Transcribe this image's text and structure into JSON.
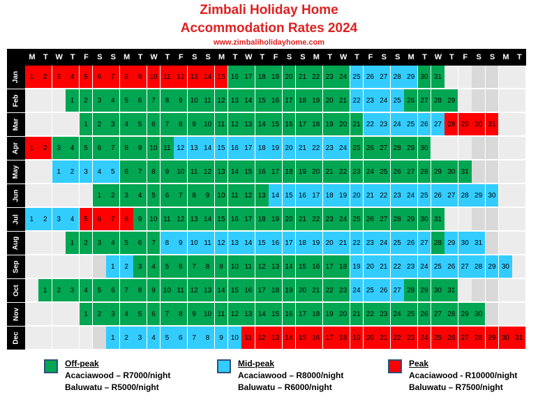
{
  "header": {
    "title_line1": "Zimbali Holiday Home",
    "title_line2": "Accommodation Rates 2024",
    "website": "www.zimbaliholidayhome.com"
  },
  "weekday_headers": [
    "M",
    "T",
    "W",
    "T",
    "F",
    "S",
    "S",
    "M",
    "T",
    "W",
    "T",
    "F",
    "S",
    "S",
    "M",
    "T",
    "W",
    "T",
    "F",
    "S",
    "S",
    "M",
    "T",
    "W",
    "T",
    "F",
    "S",
    "S",
    "M",
    "T",
    "W",
    "T",
    "F",
    "S",
    "S",
    "M",
    "T"
  ],
  "colors": {
    "off_peak": "#00a651",
    "mid_peak": "#33ccff",
    "peak": "#ff0000"
  },
  "months": [
    {
      "name": "Jan",
      "start": 0,
      "days": 31,
      "segments": [
        [
          "peak",
          1,
          15
        ],
        [
          "off",
          16,
          24
        ],
        [
          "mid",
          25,
          29
        ],
        [
          "off",
          30,
          31
        ]
      ]
    },
    {
      "name": "Feb",
      "start": 3,
      "days": 29,
      "segments": [
        [
          "off",
          1,
          21
        ],
        [
          "mid",
          22,
          25
        ],
        [
          "off",
          26,
          29
        ]
      ]
    },
    {
      "name": "Mar",
      "start": 4,
      "days": 31,
      "segments": [
        [
          "off",
          1,
          21
        ],
        [
          "mid",
          22,
          27
        ],
        [
          "peak",
          28,
          31
        ]
      ]
    },
    {
      "name": "Apr",
      "start": 0,
      "days": 30,
      "segments": [
        [
          "peak",
          1,
          2
        ],
        [
          "off",
          3,
          11
        ],
        [
          "mid",
          12,
          24
        ],
        [
          "off",
          25,
          30
        ]
      ]
    },
    {
      "name": "May",
      "start": 2,
      "days": 31,
      "segments": [
        [
          "mid",
          1,
          5
        ],
        [
          "off",
          6,
          31
        ]
      ]
    },
    {
      "name": "Jun",
      "start": 5,
      "days": 30,
      "segments": [
        [
          "off",
          1,
          13
        ],
        [
          "mid",
          14,
          30
        ]
      ]
    },
    {
      "name": "Jul",
      "start": 0,
      "days": 31,
      "segments": [
        [
          "mid",
          1,
          4
        ],
        [
          "peak",
          5,
          8
        ],
        [
          "off",
          9,
          31
        ]
      ]
    },
    {
      "name": "Aug",
      "start": 3,
      "days": 31,
      "segments": [
        [
          "off",
          1,
          7
        ],
        [
          "mid",
          8,
          27
        ],
        [
          "off",
          28,
          28
        ],
        [
          "mid",
          29,
          31
        ]
      ]
    },
    {
      "name": "Sep",
      "start": 6,
      "days": 30,
      "segments": [
        [
          "mid",
          1,
          2
        ],
        [
          "off",
          3,
          18
        ],
        [
          "mid",
          19,
          30
        ]
      ]
    },
    {
      "name": "Oct",
      "start": 1,
      "days": 31,
      "segments": [
        [
          "off",
          1,
          23
        ],
        [
          "mid",
          24,
          27
        ],
        [
          "off",
          28,
          31
        ]
      ]
    },
    {
      "name": "Nov",
      "start": 4,
      "days": 30,
      "segments": [
        [
          "off",
          1,
          30
        ]
      ]
    },
    {
      "name": "Dec",
      "start": 6,
      "days": 31,
      "segments": [
        [
          "mid",
          1,
          10
        ],
        [
          "peak",
          11,
          31
        ]
      ]
    }
  ],
  "legend": [
    {
      "key": "off",
      "heading": "Off-peak",
      "line1": "Acaciawood – R7000/night",
      "line2": "Baluwatu – R5000/night"
    },
    {
      "key": "mid",
      "heading": "Mid-peak",
      "line1": "Acaciawood – R8000/night",
      "line2": "Baluwatu – R6000/night"
    },
    {
      "key": "peak",
      "heading": "Peak",
      "line1": "Acaciawood - R10000/night",
      "line2": "Baluwatu – R7500/night"
    }
  ]
}
